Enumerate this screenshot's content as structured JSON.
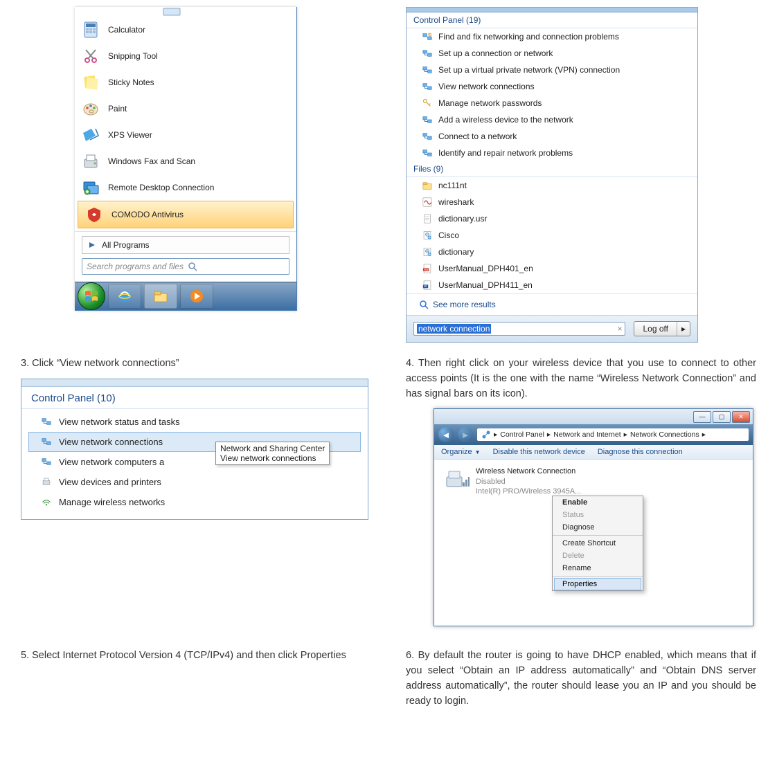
{
  "startMenu": {
    "items": [
      {
        "label": "Calculator",
        "icon": "calculator"
      },
      {
        "label": "Snipping Tool",
        "icon": "scissors"
      },
      {
        "label": "Sticky Notes",
        "icon": "sticky"
      },
      {
        "label": "Paint",
        "icon": "paint"
      },
      {
        "label": "XPS Viewer",
        "icon": "xps"
      },
      {
        "label": "Windows Fax and Scan",
        "icon": "fax"
      },
      {
        "label": "Remote Desktop Connection",
        "icon": "rdp"
      },
      {
        "label": "COMODO Antivirus",
        "icon": "comodo",
        "selected": true
      }
    ],
    "allPrograms": "All Programs",
    "searchPlaceholder": "Search programs and files"
  },
  "searchPanel": {
    "cpHeader": "Control Panel (19)",
    "cpItems": [
      "Find and fix networking and connection problems",
      "Set up a connection or network",
      "Set up a virtual private network (VPN) connection",
      "View network connections",
      "Manage network passwords",
      "Add a wireless device to the network",
      "Connect to a network",
      "Identify and repair network problems"
    ],
    "filesHeader": "Files (9)",
    "files": [
      {
        "label": "nc111nt",
        "icon": "folder"
      },
      {
        "label": "wireshark",
        "icon": "wireshark"
      },
      {
        "label": "dictionary.usr",
        "icon": "doc"
      },
      {
        "label": "Cisco",
        "icon": "web"
      },
      {
        "label": "dictionary",
        "icon": "web"
      },
      {
        "label": "UserManual_DPH401_en",
        "icon": "pdf"
      },
      {
        "label": "UserManual_DPH411_en",
        "icon": "word"
      }
    ],
    "seeMore": "See more results",
    "searchTerm": "network connection",
    "logoff": "Log off"
  },
  "step3": "3. Click “View network connections”",
  "cpPanel": {
    "header": "Control Panel (10)",
    "items": [
      "View network status and tasks",
      "View network connections",
      "View network computers a",
      "View devices and printers",
      "Manage wireless networks"
    ],
    "tooltip1": "Network and Sharing Center",
    "tooltip2": "View network connections"
  },
  "step4": "4. Then right click on your wireless device that you use to connect to other access points (It is the one with the name “Wireless Network Connection” and has signal bars on its icon).",
  "netConn": {
    "breadcrumb": [
      "Control Panel",
      "Network and Internet",
      "Network Connections"
    ],
    "toolbar": {
      "organize": "Organize",
      "disable": "Disable this network device",
      "diagnose": "Diagnose this connection"
    },
    "adapter": {
      "name": "Wireless Network Connection",
      "status": "Disabled",
      "device": "Intel(R) PRO/Wireless 3945A..."
    },
    "ctx": [
      "Enable",
      "Status",
      "Diagnose",
      "Create Shortcut",
      "Delete",
      "Rename",
      "Properties"
    ],
    "ctxDisabled": [
      1,
      4
    ],
    "ctxBold": 0,
    "ctxHighlighted": 6
  },
  "step5": "5. Select Internet Protocol Version 4 (TCP/IPv4) and then click Properties",
  "step6": "6. By default the router is going to have DHCP enabled, which means that if you select “Obtain an IP address automatically” and “Obtain DNS server address automatically”, the router should lease you an IP and you should be ready to login."
}
